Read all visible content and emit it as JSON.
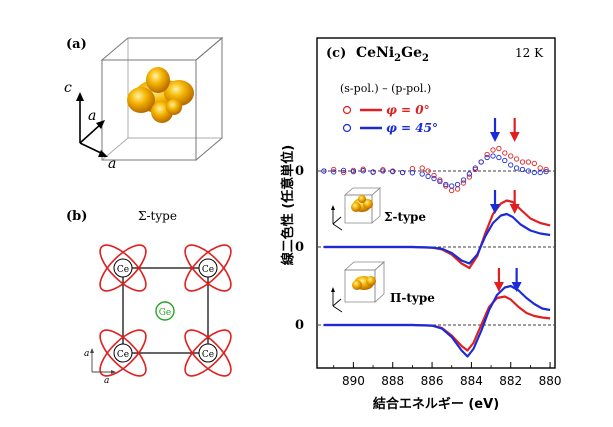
{
  "colors": {
    "red": "#e02020",
    "blue": "#1a2cd8",
    "green": "#2aa02a",
    "orb": "#f0a000"
  },
  "panel_a": {
    "label": "(a)",
    "axis_c": "c",
    "axis_a1": "a",
    "axis_a2": "a"
  },
  "panel_b": {
    "label": "(b)",
    "title": "Σ-type",
    "ce_label": "Ce",
    "ge_label": "Ge",
    "axis_a1": "a",
    "axis_a2": "a"
  },
  "chart_data": {
    "type": "line",
    "panel_label": "(c)",
    "compound": "CeNi",
    "compound_sub": "2",
    "compound_tail": "Ge",
    "compound_sub2": "2",
    "temperature": "12 K",
    "difference_label": "(s-pol.) – (p-pol.)",
    "legend": [
      {
        "name": "φ = 0°",
        "color": "#e02020"
      },
      {
        "name": "φ = 45°",
        "color": "#1a2cd8"
      }
    ],
    "xlabel": "結合エネルギー (eV)",
    "ylabel": "線二色性 (任意単位)",
    "x_ticks": [
      890,
      888,
      886,
      884,
      882,
      880
    ],
    "xlim": [
      891.8,
      879.8
    ],
    "zero_label": "0",
    "panels": [
      {
        "name": "experiment",
        "series": [
          {
            "name": "φ = 0°",
            "style": "markers",
            "x": [
              891.5,
              891.0,
              890.5,
              890.0,
              889.5,
              889.0,
              888.5,
              888.0,
              887.5,
              887.0,
              886.5,
              886.2,
              885.9,
              885.6,
              885.3,
              885.0,
              884.7,
              884.4,
              884.1,
              883.8,
              883.5,
              883.2,
              882.9,
              882.6,
              882.3,
              882.0,
              881.7,
              881.4,
              881.1,
              880.8,
              880.5,
              880.2
            ],
            "y": [
              0.0,
              0.05,
              -0.05,
              0.02,
              0.06,
              -0.03,
              0.04,
              0.0,
              -0.05,
              0.08,
              0.1,
              0.0,
              -0.15,
              -0.3,
              -0.5,
              -0.65,
              -0.6,
              -0.4,
              -0.2,
              0.05,
              0.3,
              0.55,
              0.7,
              0.75,
              0.6,
              0.5,
              0.4,
              0.3,
              0.3,
              0.25,
              0.1,
              0.05
            ]
          },
          {
            "name": "φ = 45°",
            "style": "markers",
            "x": [
              891.5,
              891.0,
              890.5,
              890.0,
              889.5,
              889.0,
              888.5,
              888.0,
              887.5,
              887.0,
              886.5,
              886.2,
              885.9,
              885.6,
              885.3,
              885.0,
              884.7,
              884.4,
              884.1,
              883.8,
              883.5,
              883.2,
              882.9,
              882.6,
              882.3,
              882.0,
              881.7,
              881.4,
              881.1,
              880.8,
              880.5,
              880.2
            ],
            "y": [
              0.0,
              -0.03,
              0.02,
              -0.02,
              0.01,
              -0.04,
              0.0,
              -0.02,
              -0.05,
              -0.06,
              -0.1,
              -0.18,
              -0.25,
              -0.35,
              -0.45,
              -0.5,
              -0.45,
              -0.3,
              -0.1,
              0.1,
              0.3,
              0.45,
              0.5,
              0.45,
              0.35,
              0.2,
              0.1,
              0.05,
              0.0,
              -0.05,
              -0.05,
              -0.02
            ]
          }
        ]
      },
      {
        "name": "Σ-type",
        "label": "Σ-type",
        "series": [
          {
            "name": "φ = 0°",
            "style": "line",
            "x": [
              891.5,
              890,
              888,
              887,
              886,
              885.5,
              885,
              884.5,
              884.1,
              883.7,
              883.3,
              882.9,
              882.5,
              882.2,
              881.9,
              881.5,
              881.0,
              880.5,
              880.0
            ],
            "y": [
              0,
              0,
              0,
              0,
              -0.02,
              -0.08,
              -0.25,
              -0.55,
              -0.7,
              -0.3,
              0.45,
              1.1,
              1.45,
              1.55,
              1.5,
              1.25,
              0.95,
              0.8,
              0.72
            ]
          },
          {
            "name": "φ = 45°",
            "style": "line",
            "x": [
              891.5,
              890,
              888,
              887,
              886,
              885.5,
              885,
              884.5,
              884.1,
              883.7,
              883.3,
              882.9,
              882.5,
              882.2,
              881.9,
              881.5,
              881.0,
              880.5,
              880.0
            ],
            "y": [
              0,
              0,
              0,
              0,
              -0.02,
              -0.06,
              -0.2,
              -0.45,
              -0.55,
              -0.25,
              0.35,
              0.8,
              1.05,
              1.1,
              1.0,
              0.75,
              0.55,
              0.45,
              0.4
            ]
          }
        ]
      },
      {
        "name": "Π-type",
        "label": "Π-type",
        "series": [
          {
            "name": "φ = 0°",
            "style": "line",
            "x": [
              891.5,
              890,
              888,
              887,
              886,
              885.5,
              885,
              884.5,
              884.2,
              883.9,
              883.5,
              883.1,
              882.7,
              882.3,
              882.0,
              881.6,
              881.2,
              880.8,
              880.4,
              880.0
            ],
            "y": [
              0,
              0,
              0,
              0,
              -0.02,
              -0.1,
              -0.35,
              -0.7,
              -0.85,
              -0.6,
              0.0,
              0.6,
              0.9,
              0.95,
              0.85,
              0.6,
              0.4,
              0.3,
              0.25,
              0.22
            ]
          },
          {
            "name": "φ = 45°",
            "style": "line",
            "x": [
              891.5,
              890,
              888,
              887,
              886,
              885.5,
              885,
              884.5,
              884.2,
              883.9,
              883.5,
              883.1,
              882.7,
              882.3,
              882.0,
              881.6,
              881.2,
              880.8,
              880.4,
              880.0
            ],
            "y": [
              0,
              0,
              0,
              0,
              -0.02,
              -0.12,
              -0.4,
              -0.85,
              -1.05,
              -0.8,
              -0.2,
              0.5,
              1.0,
              1.25,
              1.3,
              1.15,
              0.9,
              0.7,
              0.55,
              0.5
            ]
          }
        ]
      }
    ],
    "arrows": [
      {
        "panel": "experiment",
        "x": 882.8,
        "color": "blue"
      },
      {
        "panel": "experiment",
        "x": 881.8,
        "color": "red"
      },
      {
        "panel": "Σ-type",
        "x": 882.8,
        "color": "blue"
      },
      {
        "panel": "Σ-type",
        "x": 881.8,
        "color": "red"
      },
      {
        "panel": "Π-type",
        "x": 882.6,
        "color": "red"
      },
      {
        "panel": "Π-type",
        "x": 881.7,
        "color": "blue"
      }
    ]
  }
}
